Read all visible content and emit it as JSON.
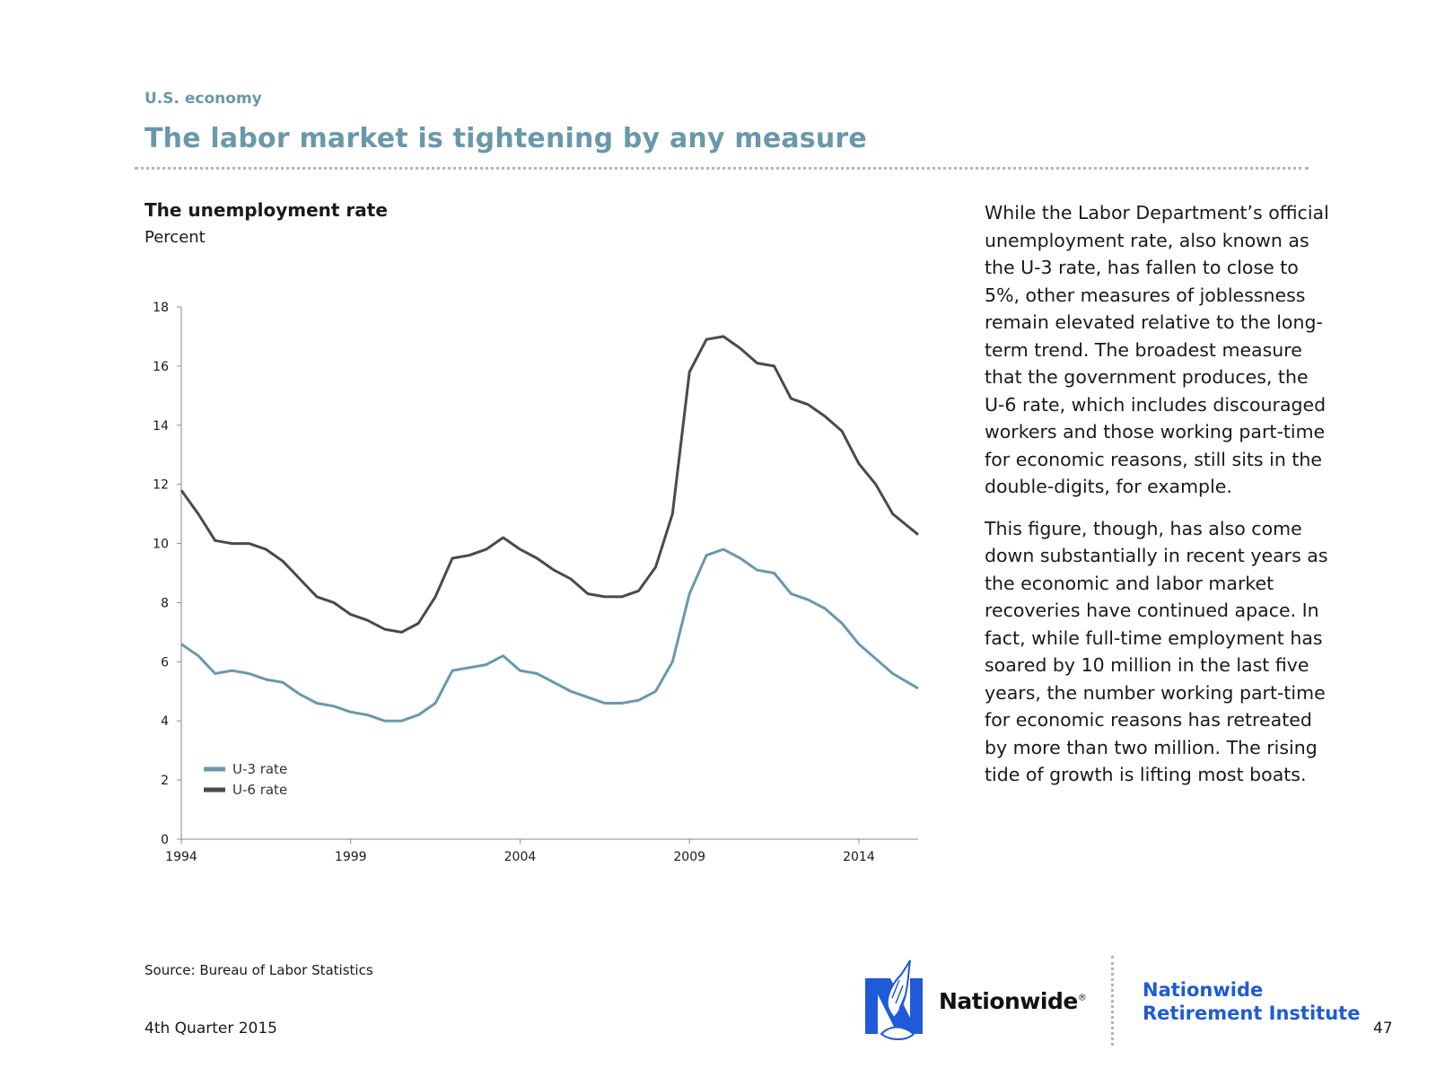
{
  "header": {
    "section": "U.S. economy",
    "title": "The labor market is tightening by any measure"
  },
  "chart_data": {
    "type": "line",
    "title": "The unemployment rate",
    "ylabel": "Percent",
    "xlabel": "",
    "xlim": [
      1994,
      2015.75
    ],
    "ylim": [
      0,
      18
    ],
    "yticks": [
      0,
      2,
      4,
      6,
      8,
      10,
      12,
      14,
      16,
      18
    ],
    "xticks": [
      1994,
      1999,
      2004,
      2009,
      2014
    ],
    "grid": false,
    "legend": "bottom-left",
    "series": [
      {
        "name": "U-3 rate",
        "color": "#6a98ab",
        "x": [
          1994,
          1994.5,
          1995,
          1995.5,
          1996,
          1996.5,
          1997,
          1997.5,
          1998,
          1998.5,
          1999,
          1999.5,
          2000,
          2000.5,
          2001,
          2001.5,
          2002,
          2002.5,
          2003,
          2003.5,
          2004,
          2004.5,
          2005,
          2005.5,
          2006,
          2006.5,
          2007,
          2007.5,
          2008,
          2008.5,
          2009,
          2009.5,
          2010,
          2010.5,
          2011,
          2011.5,
          2012,
          2012.5,
          2013,
          2013.5,
          2014,
          2014.5,
          2015,
          2015.75
        ],
        "y": [
          6.6,
          6.2,
          5.6,
          5.7,
          5.6,
          5.4,
          5.3,
          4.9,
          4.6,
          4.5,
          4.3,
          4.2,
          4.0,
          4.0,
          4.2,
          4.6,
          5.7,
          5.8,
          5.9,
          6.2,
          5.7,
          5.6,
          5.3,
          5.0,
          4.8,
          4.6,
          4.6,
          4.7,
          5.0,
          6.0,
          8.3,
          9.6,
          9.8,
          9.5,
          9.1,
          9.0,
          8.3,
          8.1,
          7.8,
          7.3,
          6.6,
          6.1,
          5.6,
          5.1
        ]
      },
      {
        "name": "U-6 rate",
        "color": "#4a4a4d",
        "x": [
          1994,
          1994.5,
          1995,
          1995.5,
          1996,
          1996.5,
          1997,
          1997.5,
          1998,
          1998.5,
          1999,
          1999.5,
          2000,
          2000.5,
          2001,
          2001.5,
          2002,
          2002.5,
          2003,
          2003.5,
          2004,
          2004.5,
          2005,
          2005.5,
          2006,
          2006.5,
          2007,
          2007.5,
          2008,
          2008.5,
          2009,
          2009.5,
          2010,
          2010.5,
          2011,
          2011.5,
          2012,
          2012.5,
          2013,
          2013.5,
          2014,
          2014.5,
          2015,
          2015.75
        ],
        "y": [
          11.8,
          11.0,
          10.1,
          10.0,
          10.0,
          9.8,
          9.4,
          8.8,
          8.2,
          8.0,
          7.6,
          7.4,
          7.1,
          7.0,
          7.3,
          8.2,
          9.5,
          9.6,
          9.8,
          10.2,
          9.8,
          9.5,
          9.1,
          8.8,
          8.3,
          8.2,
          8.2,
          8.4,
          9.2,
          11.0,
          15.8,
          16.9,
          17.0,
          16.6,
          16.1,
          16.0,
          14.9,
          14.7,
          14.3,
          13.8,
          12.7,
          12.0,
          11.0,
          10.3
        ]
      }
    ]
  },
  "body": {
    "p1": "While the Labor Department’s official unemployment rate, also known as the U-3 rate, has fallen to close to 5%, other measures of joblessness remain elevated relative to the long-term trend. The broadest measure that the government produces, the U-6 rate, which includes discouraged workers and those working part-time for economic reasons, still sits in the double-digits, for example.",
    "p2": "This figure, though, has also come down substantially in recent years as the economic and labor market recoveries have continued apace. In fact, while full-time employment has soared by 10 million in the last five years, the number working part-time for economic reasons has retreated by more than two million. The rising tide of growth is lifting most boats."
  },
  "footer": {
    "source": "Source: Bureau of Labor Statistics",
    "quarter": "4th Quarter 2015",
    "page": "47",
    "brand": "Nationwide",
    "brand_mark": "®",
    "institute_line1": "Nationwide",
    "institute_line2": "Retirement Institute"
  },
  "colors": {
    "accent": "#6a98ab",
    "brand_blue": "#1f5bd8"
  }
}
